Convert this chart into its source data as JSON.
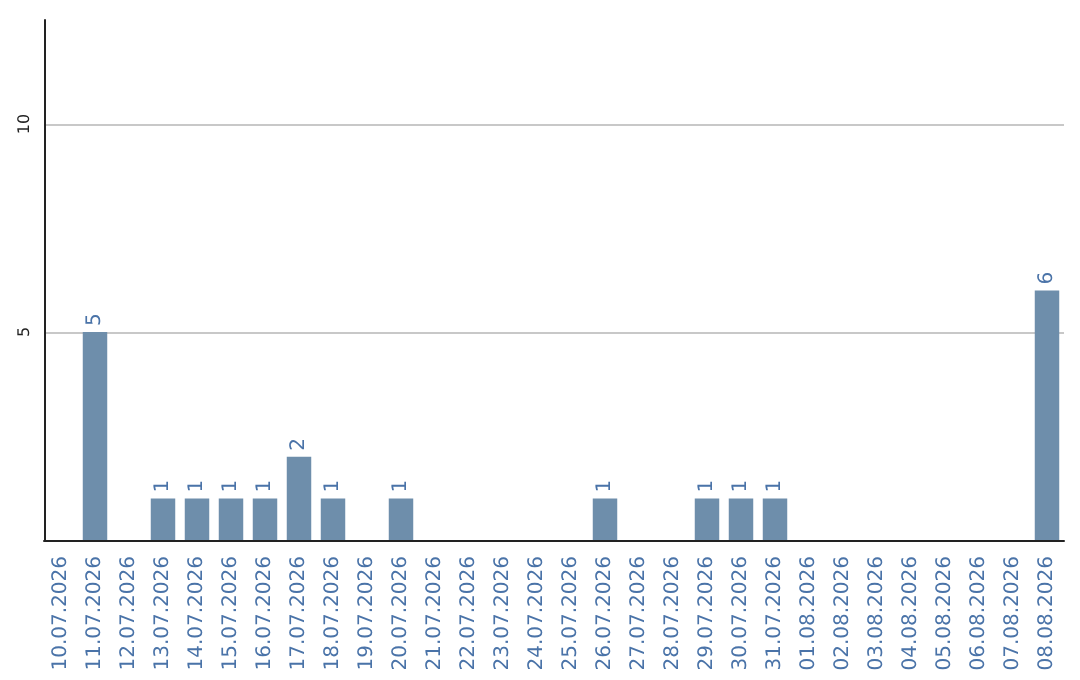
{
  "chart_data": {
    "type": "bar",
    "categories": [
      "10.07.2026",
      "11.07.2026",
      "12.07.2026",
      "13.07.2026",
      "14.07.2026",
      "15.07.2026",
      "16.07.2026",
      "17.07.2026",
      "18.07.2026",
      "19.07.2026",
      "20.07.2026",
      "21.07.2026",
      "22.07.2026",
      "23.07.2026",
      "24.07.2026",
      "25.07.2026",
      "26.07.2026",
      "27.07.2026",
      "28.07.2026",
      "29.07.2026",
      "30.07.2026",
      "31.07.2026",
      "01.08.2026",
      "02.08.2026",
      "03.08.2026",
      "04.08.2026",
      "05.08.2026",
      "06.08.2026",
      "07.08.2026",
      "08.08.2026"
    ],
    "values": [
      0,
      5,
      0,
      1,
      1,
      1,
      1,
      2,
      1,
      0,
      1,
      0,
      0,
      0,
      0,
      0,
      1,
      0,
      0,
      1,
      1,
      1,
      0,
      0,
      0,
      0,
      0,
      0,
      0,
      6
    ],
    "value_labels": [
      null,
      "5",
      null,
      "1",
      "1",
      "1",
      "1",
      "2",
      "1",
      null,
      "1",
      null,
      null,
      null,
      null,
      null,
      "1",
      null,
      null,
      "1",
      "1",
      "1",
      null,
      null,
      null,
      null,
      null,
      null,
      null,
      "6"
    ],
    "color": "#6e8eab",
    "ylim": [
      0,
      12.5
    ],
    "yticks": [
      5,
      10
    ],
    "grid": "y"
  }
}
